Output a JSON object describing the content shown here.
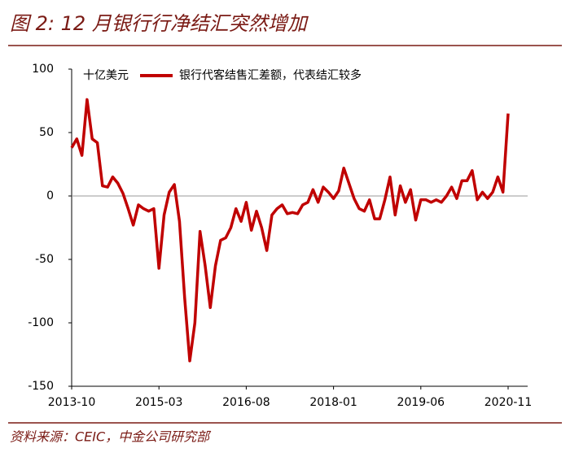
{
  "chart_data": {
    "type": "line",
    "title": "图 2: 12 月银行行净结汇突然增加",
    "unit": "十亿美元",
    "source": "资料来源：CEIC，中金公司研究部",
    "x": [
      "2013-10",
      "2013-11",
      "2013-12",
      "2014-01",
      "2014-02",
      "2014-03",
      "2014-04",
      "2014-05",
      "2014-06",
      "2014-07",
      "2014-08",
      "2014-09",
      "2014-10",
      "2014-11",
      "2014-12",
      "2015-01",
      "2015-02",
      "2015-03",
      "2015-04",
      "2015-05",
      "2015-06",
      "2015-07",
      "2015-08",
      "2015-09",
      "2015-10",
      "2015-11",
      "2015-12",
      "2016-01",
      "2016-02",
      "2016-03",
      "2016-04",
      "2016-05",
      "2016-06",
      "2016-07",
      "2016-08",
      "2016-09",
      "2016-10",
      "2016-11",
      "2016-12",
      "2017-01",
      "2017-02",
      "2017-03",
      "2017-04",
      "2017-05",
      "2017-06",
      "2017-07",
      "2017-08",
      "2017-09",
      "2017-10",
      "2017-11",
      "2017-12",
      "2018-01",
      "2018-02",
      "2018-03",
      "2018-04",
      "2018-05",
      "2018-06",
      "2018-07",
      "2018-08",
      "2018-09",
      "2018-10",
      "2018-11",
      "2018-12",
      "2019-01",
      "2019-02",
      "2019-03",
      "2019-04",
      "2019-05",
      "2019-06",
      "2019-07",
      "2019-08",
      "2019-09",
      "2019-10",
      "2019-11",
      "2019-12",
      "2020-01",
      "2020-02",
      "2020-03",
      "2020-04",
      "2020-05",
      "2020-06",
      "2020-07",
      "2020-08",
      "2020-09",
      "2020-10",
      "2020-11"
    ],
    "series": [
      {
        "name": "银行代客结售汇差额，代表结汇较多",
        "color": "#c00000",
        "values": [
          38,
          45,
          32,
          76,
          45,
          42,
          8,
          7,
          15,
          10,
          2,
          -10,
          -23,
          -7,
          -10,
          -12,
          -10,
          -57,
          -15,
          3,
          9,
          -20,
          -80,
          -130,
          -100,
          -28,
          -55,
          -88,
          -55,
          -35,
          -33,
          -25,
          -10,
          -20,
          -5,
          -27,
          -12,
          -25,
          -43,
          -15,
          -10,
          -7,
          -14,
          -13,
          -14,
          -7,
          -5,
          5,
          -5,
          7,
          3,
          -2,
          4,
          22,
          10,
          -2,
          -10,
          -12,
          -3,
          -18,
          -18,
          -3,
          15,
          -15,
          8,
          -5,
          5,
          -19,
          -3,
          -3,
          -5,
          -3,
          -5,
          0,
          7,
          -2,
          12,
          12,
          20,
          -3,
          3,
          -2,
          3,
          15,
          3,
          65
        ]
      }
    ],
    "xticks": [
      "2013-10",
      "2015-03",
      "2016-08",
      "2018-01",
      "2019-06",
      "2020-11"
    ],
    "ylim": [
      -150,
      100
    ],
    "yticks": [
      100,
      50,
      0,
      -50,
      -100,
      -150
    ],
    "zero_line": true
  }
}
